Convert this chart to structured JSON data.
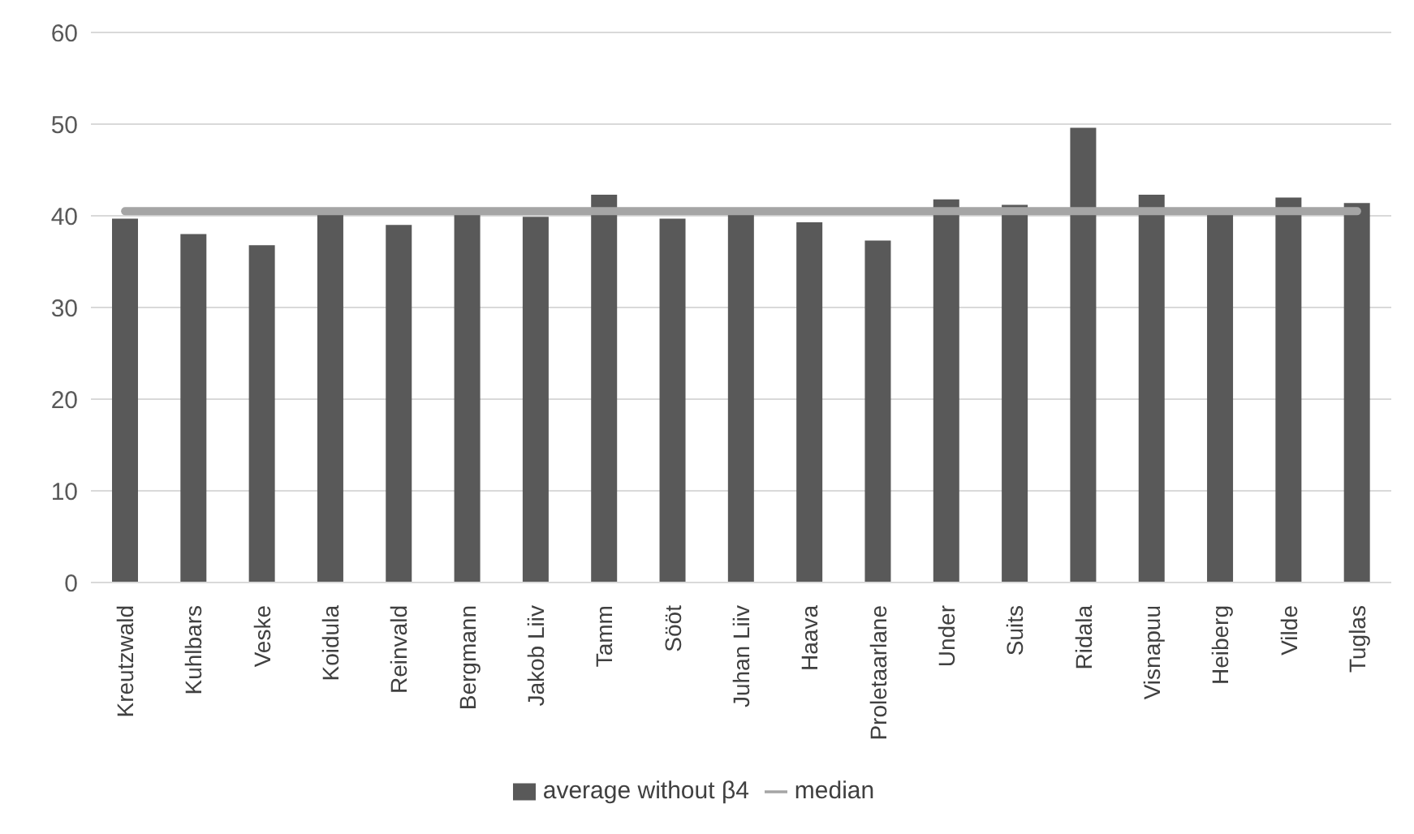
{
  "chart_data": {
    "type": "bar",
    "categories": [
      "Kreutzwald",
      "Kuhlbars",
      "Veske",
      "Koidula",
      "Reinvald",
      "Bergmann",
      "Jakob Liiv",
      "Tamm",
      "Sööt",
      "Juhan Liiv",
      "Haava",
      "Proletaarlane",
      "Under",
      "Suits",
      "Ridala",
      "Visnapuu",
      "Heiberg",
      "Vilde",
      "Tuglas"
    ],
    "series": [
      {
        "name": "average without β4",
        "color": "#595959",
        "values": [
          39.7,
          38.0,
          36.8,
          40.2,
          39.0,
          40.2,
          39.9,
          42.3,
          39.7,
          40.2,
          39.3,
          37.3,
          41.8,
          41.2,
          49.6,
          42.3,
          40.2,
          42.0,
          41.4
        ]
      },
      {
        "name": "median",
        "type": "line",
        "color": "#a5a5a5",
        "values": [
          40.5,
          40.5,
          40.5,
          40.5,
          40.5,
          40.5,
          40.5,
          40.5,
          40.5,
          40.5,
          40.5,
          40.5,
          40.5,
          40.5,
          40.5,
          40.5,
          40.5,
          40.5,
          40.5
        ]
      }
    ],
    "ylim": [
      0,
      60
    ],
    "yticks": [
      0,
      10,
      20,
      30,
      40,
      50,
      60
    ],
    "grid": "y",
    "legend": "bottom"
  }
}
